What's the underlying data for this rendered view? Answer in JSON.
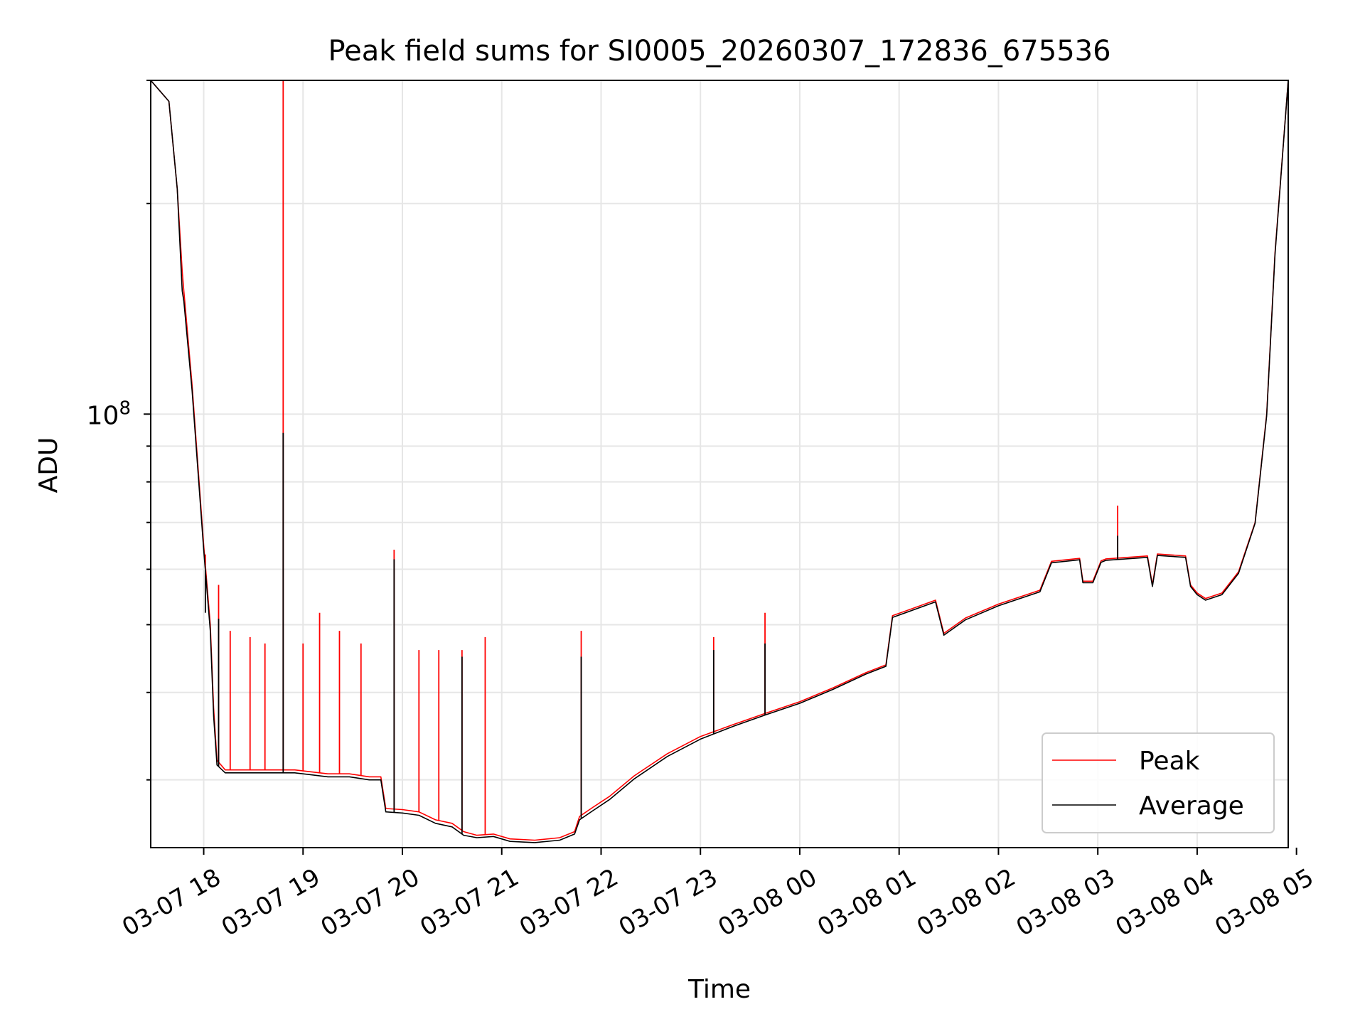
{
  "chart_data": {
    "type": "line",
    "title": "Peak field sums for SI0005_20260307_172836_675536",
    "xlabel": "Time",
    "ylabel": "ADU",
    "yscale": "log",
    "ylim": [
      24000000,
      300000000
    ],
    "xlim": [
      "2026-03-07 17:28",
      "2026-03-08 04:55"
    ],
    "grid": true,
    "legend": "bottom-right",
    "x_ticks": [
      "03-07 18",
      "03-07 19",
      "03-07 20",
      "03-07 21",
      "03-07 22",
      "03-07 23",
      "03-08 00",
      "03-08 01",
      "03-08 02",
      "03-08 03",
      "03-08 04",
      "03-08 05"
    ],
    "y_ticks": [
      {
        "value": 100000000,
        "label": "10",
        "exp": "8"
      }
    ],
    "series": [
      {
        "name": "Peak",
        "color": "#ff0000",
        "x": [
          "2026-03-07 17:28",
          "2026-03-07 17:39",
          "2026-03-07 17:44",
          "2026-03-07 17:47",
          "2026-03-07 17:48",
          "2026-03-07 17:53",
          "2026-03-07 18:00",
          "2026-03-07 18:04",
          "2026-03-07 18:06",
          "2026-03-07 18:08",
          "2026-03-07 18:13",
          "2026-03-07 18:17",
          "2026-03-07 18:20",
          "2026-03-07 18:30",
          "2026-03-07 18:38",
          "2026-03-07 18:45",
          "2026-03-07 18:55",
          "2026-03-07 19:05",
          "2026-03-07 19:15",
          "2026-03-07 19:28",
          "2026-03-07 19:40",
          "2026-03-07 19:47",
          "2026-03-07 19:50",
          "2026-03-07 20:00",
          "2026-03-07 20:10",
          "2026-03-07 20:20",
          "2026-03-07 20:30",
          "2026-03-07 20:37",
          "2026-03-07 20:45",
          "2026-03-07 20:55",
          "2026-03-07 21:05",
          "2026-03-07 21:20",
          "2026-03-07 21:35",
          "2026-03-07 21:44",
          "2026-03-07 21:47",
          "2026-03-07 21:55",
          "2026-03-07 22:05",
          "2026-03-07 22:20",
          "2026-03-07 22:40",
          "2026-03-07 23:00",
          "2026-03-07 23:20",
          "2026-03-07 23:40",
          "2026-03-08 00:00",
          "2026-03-08 00:20",
          "2026-03-08 00:40",
          "2026-03-08 00:52",
          "2026-03-08 00:56",
          "2026-03-08 01:22",
          "2026-03-08 01:27",
          "2026-03-08 01:40",
          "2026-03-08 02:00",
          "2026-03-08 02:25",
          "2026-03-08 02:32",
          "2026-03-08 02:49",
          "2026-03-08 02:51",
          "2026-03-08 02:57",
          "2026-03-08 03:02",
          "2026-03-08 03:05",
          "2026-03-08 03:30",
          "2026-03-08 03:33",
          "2026-03-08 03:36",
          "2026-03-08 03:53",
          "2026-03-08 03:56",
          "2026-03-08 04:00",
          "2026-03-08 04:05",
          "2026-03-08 04:15",
          "2026-03-08 04:25",
          "2026-03-08 04:35",
          "2026-03-08 04:42",
          "2026-03-08 04:47",
          "2026-03-08 04:55"
        ],
        "y": [
          300000000,
          280000000,
          210000000,
          160000000,
          150000000,
          110000000,
          65000000,
          50000000,
          38000000,
          32000000,
          31000000,
          31000000,
          31000000,
          31000000,
          31000000,
          31000000,
          31000000,
          30800000,
          30600000,
          30600000,
          30300000,
          30300000,
          27300000,
          27200000,
          27000000,
          26300000,
          26000000,
          25300000,
          25000000,
          25100000,
          24700000,
          24600000,
          24800000,
          25300000,
          26600000,
          27400000,
          28400000,
          30400000,
          32700000,
          34600000,
          36000000,
          37400000,
          38800000,
          40600000,
          42700000,
          43800000,
          51500000,
          54200000,
          48600000,
          51100000,
          53500000,
          56000000,
          61600000,
          62200000,
          57700000,
          57700000,
          61700000,
          62100000,
          62700000,
          57000000,
          63100000,
          62700000,
          57000000,
          55500000,
          54500000,
          55500000,
          59500000,
          70000000,
          100000000,
          170000000,
          300000000
        ],
        "spikes": [
          {
            "x": "2026-03-07 18:01",
            "y": 63000000
          },
          {
            "x": "2026-03-07 18:09",
            "y": 57000000
          },
          {
            "x": "2026-03-07 18:16",
            "y": 49000000
          },
          {
            "x": "2026-03-07 18:28",
            "y": 48000000
          },
          {
            "x": "2026-03-07 18:37",
            "y": 47000000
          },
          {
            "x": "2026-03-07 18:48",
            "y": 300000000
          },
          {
            "x": "2026-03-07 19:00",
            "y": 47000000
          },
          {
            "x": "2026-03-07 19:10",
            "y": 52000000
          },
          {
            "x": "2026-03-07 19:22",
            "y": 49000000
          },
          {
            "x": "2026-03-07 19:35",
            "y": 47000000
          },
          {
            "x": "2026-03-07 19:55",
            "y": 64000000
          },
          {
            "x": "2026-03-07 20:10",
            "y": 46000000
          },
          {
            "x": "2026-03-07 20:22",
            "y": 46000000
          },
          {
            "x": "2026-03-07 20:36",
            "y": 46000000
          },
          {
            "x": "2026-03-07 20:50",
            "y": 48000000
          },
          {
            "x": "2026-03-07 21:48",
            "y": 49000000
          },
          {
            "x": "2026-03-07 23:08",
            "y": 48000000
          },
          {
            "x": "2026-03-07 23:39",
            "y": 52000000
          },
          {
            "x": "2026-03-08 03:12",
            "y": 74000000
          }
        ]
      },
      {
        "name": "Average",
        "color": "#000000",
        "x": [
          "2026-03-07 17:28",
          "2026-03-07 17:39",
          "2026-03-07 17:44",
          "2026-03-07 17:47",
          "2026-03-07 17:48",
          "2026-03-07 17:53",
          "2026-03-07 18:00",
          "2026-03-07 18:04",
          "2026-03-07 18:06",
          "2026-03-07 18:08",
          "2026-03-07 18:13",
          "2026-03-07 18:17",
          "2026-03-07 18:20",
          "2026-03-07 18:30",
          "2026-03-07 18:38",
          "2026-03-07 18:45",
          "2026-03-07 18:55",
          "2026-03-07 19:05",
          "2026-03-07 19:15",
          "2026-03-07 19:28",
          "2026-03-07 19:40",
          "2026-03-07 19:47",
          "2026-03-07 19:50",
          "2026-03-07 20:00",
          "2026-03-07 20:10",
          "2026-03-07 20:20",
          "2026-03-07 20:30",
          "2026-03-07 20:37",
          "2026-03-07 20:45",
          "2026-03-07 20:55",
          "2026-03-07 21:05",
          "2026-03-07 21:20",
          "2026-03-07 21:35",
          "2026-03-07 21:44",
          "2026-03-07 21:47",
          "2026-03-07 21:55",
          "2026-03-07 22:05",
          "2026-03-07 22:20",
          "2026-03-07 22:40",
          "2026-03-07 23:00",
          "2026-03-07 23:20",
          "2026-03-07 23:40",
          "2026-03-08 00:00",
          "2026-03-08 00:20",
          "2026-03-08 00:40",
          "2026-03-08 00:52",
          "2026-03-08 00:56",
          "2026-03-08 01:22",
          "2026-03-08 01:27",
          "2026-03-08 01:40",
          "2026-03-08 02:00",
          "2026-03-08 02:25",
          "2026-03-08 02:32",
          "2026-03-08 02:49",
          "2026-03-08 02:51",
          "2026-03-08 02:57",
          "2026-03-08 03:02",
          "2026-03-08 03:05",
          "2026-03-08 03:30",
          "2026-03-08 03:33",
          "2026-03-08 03:36",
          "2026-03-08 03:53",
          "2026-03-08 03:56",
          "2026-03-08 04:00",
          "2026-03-08 04:05",
          "2026-03-08 04:15",
          "2026-03-08 04:25",
          "2026-03-08 04:35",
          "2026-03-08 04:42",
          "2026-03-08 04:47",
          "2026-03-08 04:55"
        ],
        "y": [
          300000000,
          280000000,
          210000000,
          150000000,
          145000000,
          108000000,
          64000000,
          49000000,
          37000000,
          31500000,
          30700000,
          30700000,
          30700000,
          30700000,
          30700000,
          30700000,
          30700000,
          30500000,
          30300000,
          30300000,
          30000000,
          30000000,
          27000000,
          26900000,
          26700000,
          26000000,
          25700000,
          25000000,
          24800000,
          24900000,
          24500000,
          24400000,
          24600000,
          25100000,
          26300000,
          27100000,
          28100000,
          30100000,
          32400000,
          34300000,
          35800000,
          37200000,
          38600000,
          40400000,
          42500000,
          43600000,
          51200000,
          53900000,
          48300000,
          50800000,
          53200000,
          55700000,
          61300000,
          61900000,
          57400000,
          57400000,
          61400000,
          61800000,
          62400000,
          56700000,
          62800000,
          62400000,
          56700000,
          55200000,
          54200000,
          55200000,
          59200000,
          69800000,
          99500000,
          169000000,
          300000000
        ],
        "spikes": [
          {
            "x": "2026-03-07 18:01",
            "y": 52000000
          },
          {
            "x": "2026-03-07 18:09",
            "y": 51000000
          },
          {
            "x": "2026-03-07 18:48",
            "y": 94000000
          },
          {
            "x": "2026-03-07 19:55",
            "y": 62000000
          },
          {
            "x": "2026-03-07 20:36",
            "y": 45000000
          },
          {
            "x": "2026-03-07 21:48",
            "y": 45000000
          },
          {
            "x": "2026-03-07 23:08",
            "y": 46000000
          },
          {
            "x": "2026-03-07 23:39",
            "y": 47000000
          },
          {
            "x": "2026-03-08 03:12",
            "y": 67000000
          }
        ]
      }
    ]
  }
}
